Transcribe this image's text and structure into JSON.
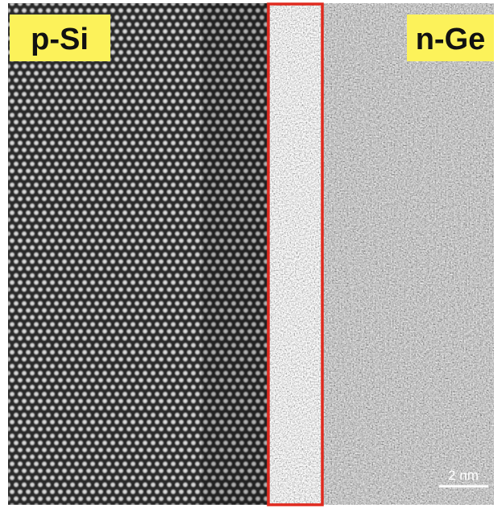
{
  "labels": {
    "left": "p-Si",
    "right": "n-Ge"
  },
  "scale_bar": "2 nm"
}
